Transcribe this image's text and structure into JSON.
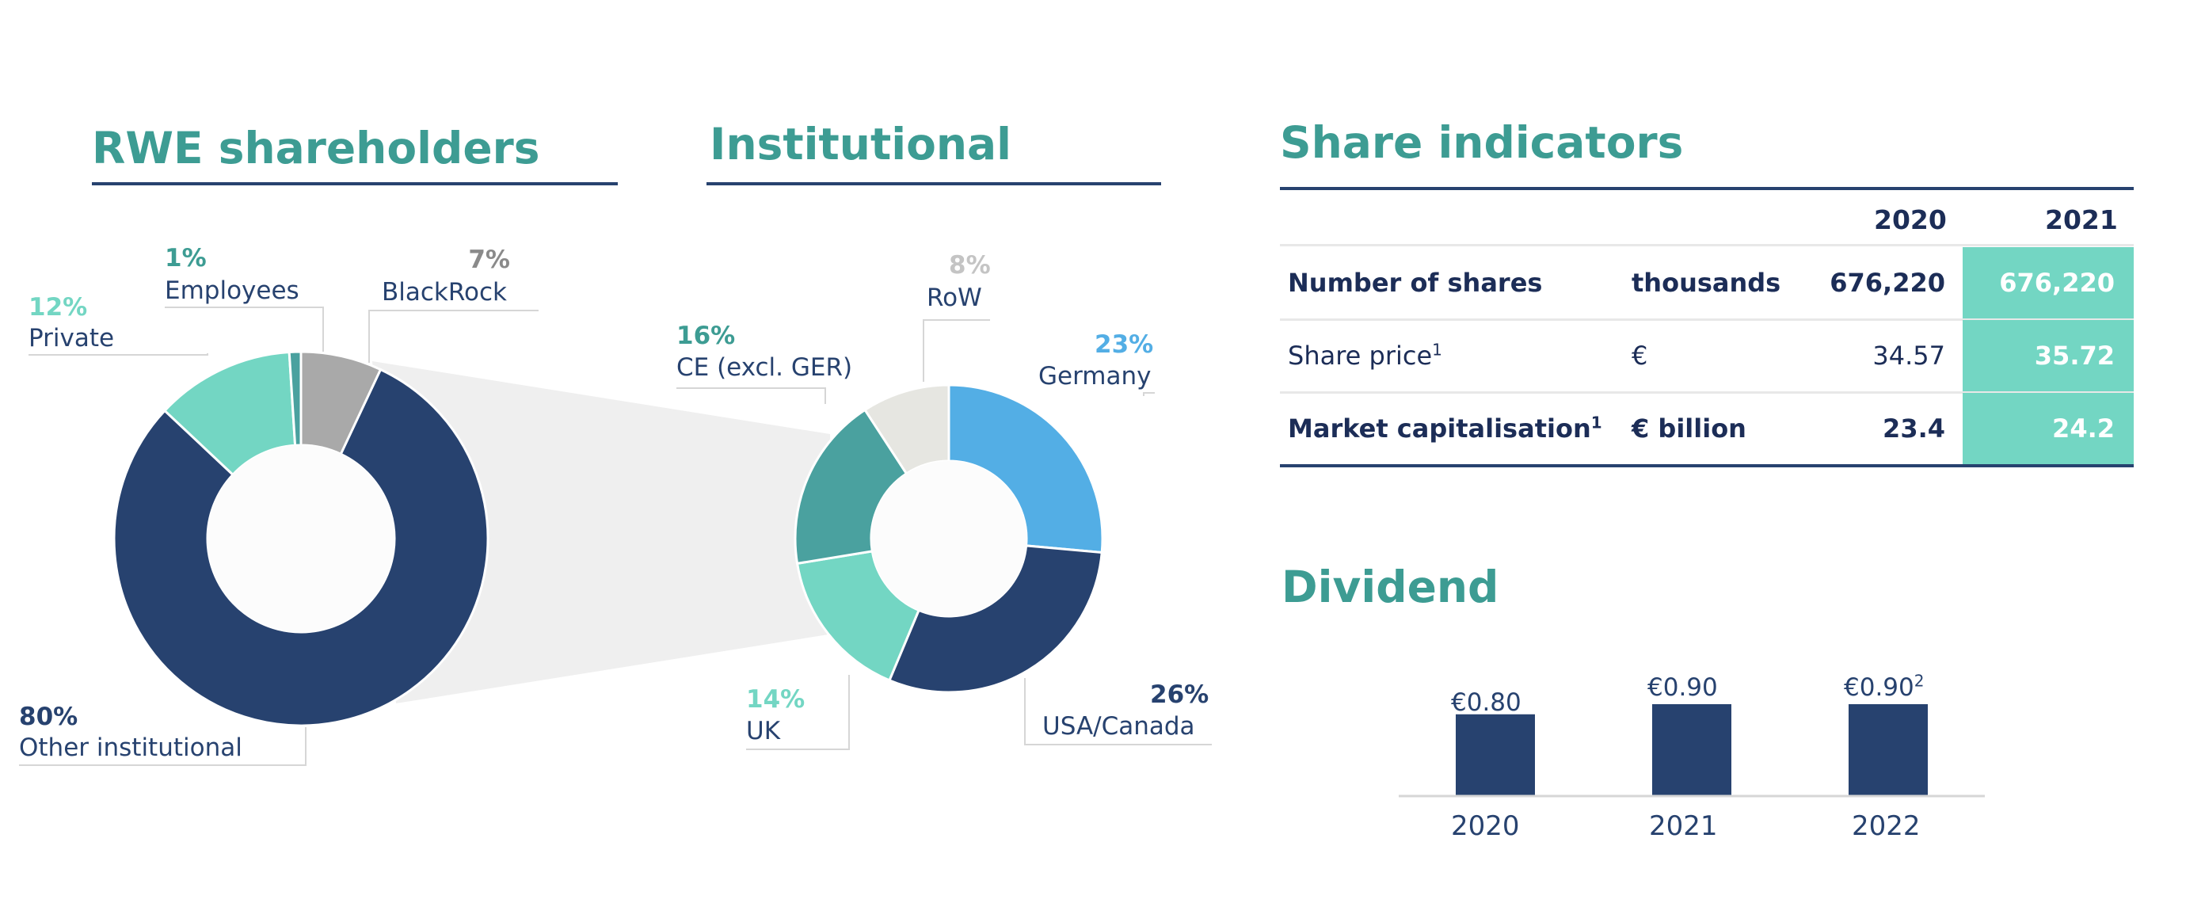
{
  "colors": {
    "teal_title": "#3d9c93",
    "navy": "#27426f",
    "light_teal": "#73d6c3",
    "mid_teal": "#4aa19f",
    "sky_blue": "#53aee5",
    "grey": "#a9a9a9",
    "light_grey": "#e6e6e1"
  },
  "left": {
    "title": "RWE shareholders"
  },
  "middle": {
    "title": "Institutional"
  },
  "share": {
    "title": "Share indicators",
    "headers": [
      "2020",
      "2021"
    ],
    "rows": [
      {
        "label": "Number of shares",
        "sup": "",
        "unit": "thousands",
        "v2020": "676,220",
        "v2021": "676,220",
        "bold": true
      },
      {
        "label": "Share price",
        "sup": "1",
        "unit": "€",
        "v2020": "34.57",
        "v2021": "35.72",
        "bold": false
      },
      {
        "label": "Market capitalisation",
        "sup": "1",
        "unit": "€ billion",
        "v2020": "23.4",
        "v2021": "24.2",
        "bold": true
      }
    ]
  },
  "dividend_title": "Dividend",
  "chart_data": [
    {
      "type": "pie",
      "title": "RWE shareholders",
      "categories": [
        "Other institutional",
        "Private",
        "Employees",
        "BlackRock"
      ],
      "values": [
        80,
        12,
        1,
        7
      ],
      "labels": [
        "80%",
        "12%",
        "1%",
        "7%"
      ],
      "colors": [
        "#27426f",
        "#73d6c3",
        "#4aa19f",
        "#a9a9a9"
      ]
    },
    {
      "type": "pie",
      "title": "Institutional",
      "categories": [
        "Germany",
        "USA/Canada",
        "UK",
        "CE (excl. GER)",
        "RoW"
      ],
      "values": [
        23,
        26,
        14,
        16,
        8
      ],
      "labels": [
        "23%",
        "26%",
        "14%",
        "16%",
        "8%"
      ],
      "colors": [
        "#53aee5",
        "#27426f",
        "#73d6c3",
        "#4aa19f",
        "#e6e6e1"
      ]
    },
    {
      "type": "bar",
      "title": "Dividend",
      "categories": [
        "2020",
        "2021",
        "2022"
      ],
      "values": [
        0.8,
        0.9,
        0.9
      ],
      "value_labels": [
        "€0.80",
        "€0.90",
        "€0.90"
      ],
      "value_label_sups": [
        "",
        "",
        "2"
      ],
      "color": "#27426f"
    }
  ]
}
